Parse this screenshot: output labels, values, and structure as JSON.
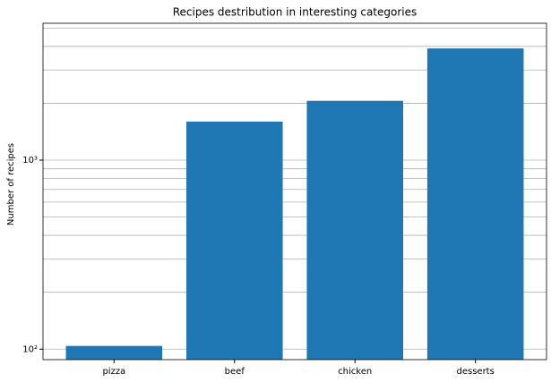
{
  "chart_data": {
    "type": "bar",
    "title": "Recipes destribution in interesting categories",
    "y_label": "Number of recipes",
    "categories": [
      "pizza",
      "beef",
      "chicken",
      "desserts"
    ],
    "values": [
      104,
      1600,
      2060,
      3900
    ],
    "color": "#1f77b4",
    "log_scale": true,
    "ylim": [
      88,
      5300
    ],
    "yticks": [
      {
        "value": 100,
        "label": "10²"
      },
      {
        "value": 1000,
        "label": "10³"
      }
    ],
    "yminorticks": [
      200,
      300,
      400,
      500,
      600,
      700,
      800,
      900,
      2000,
      3000,
      4000,
      5000
    ],
    "grid": true
  }
}
